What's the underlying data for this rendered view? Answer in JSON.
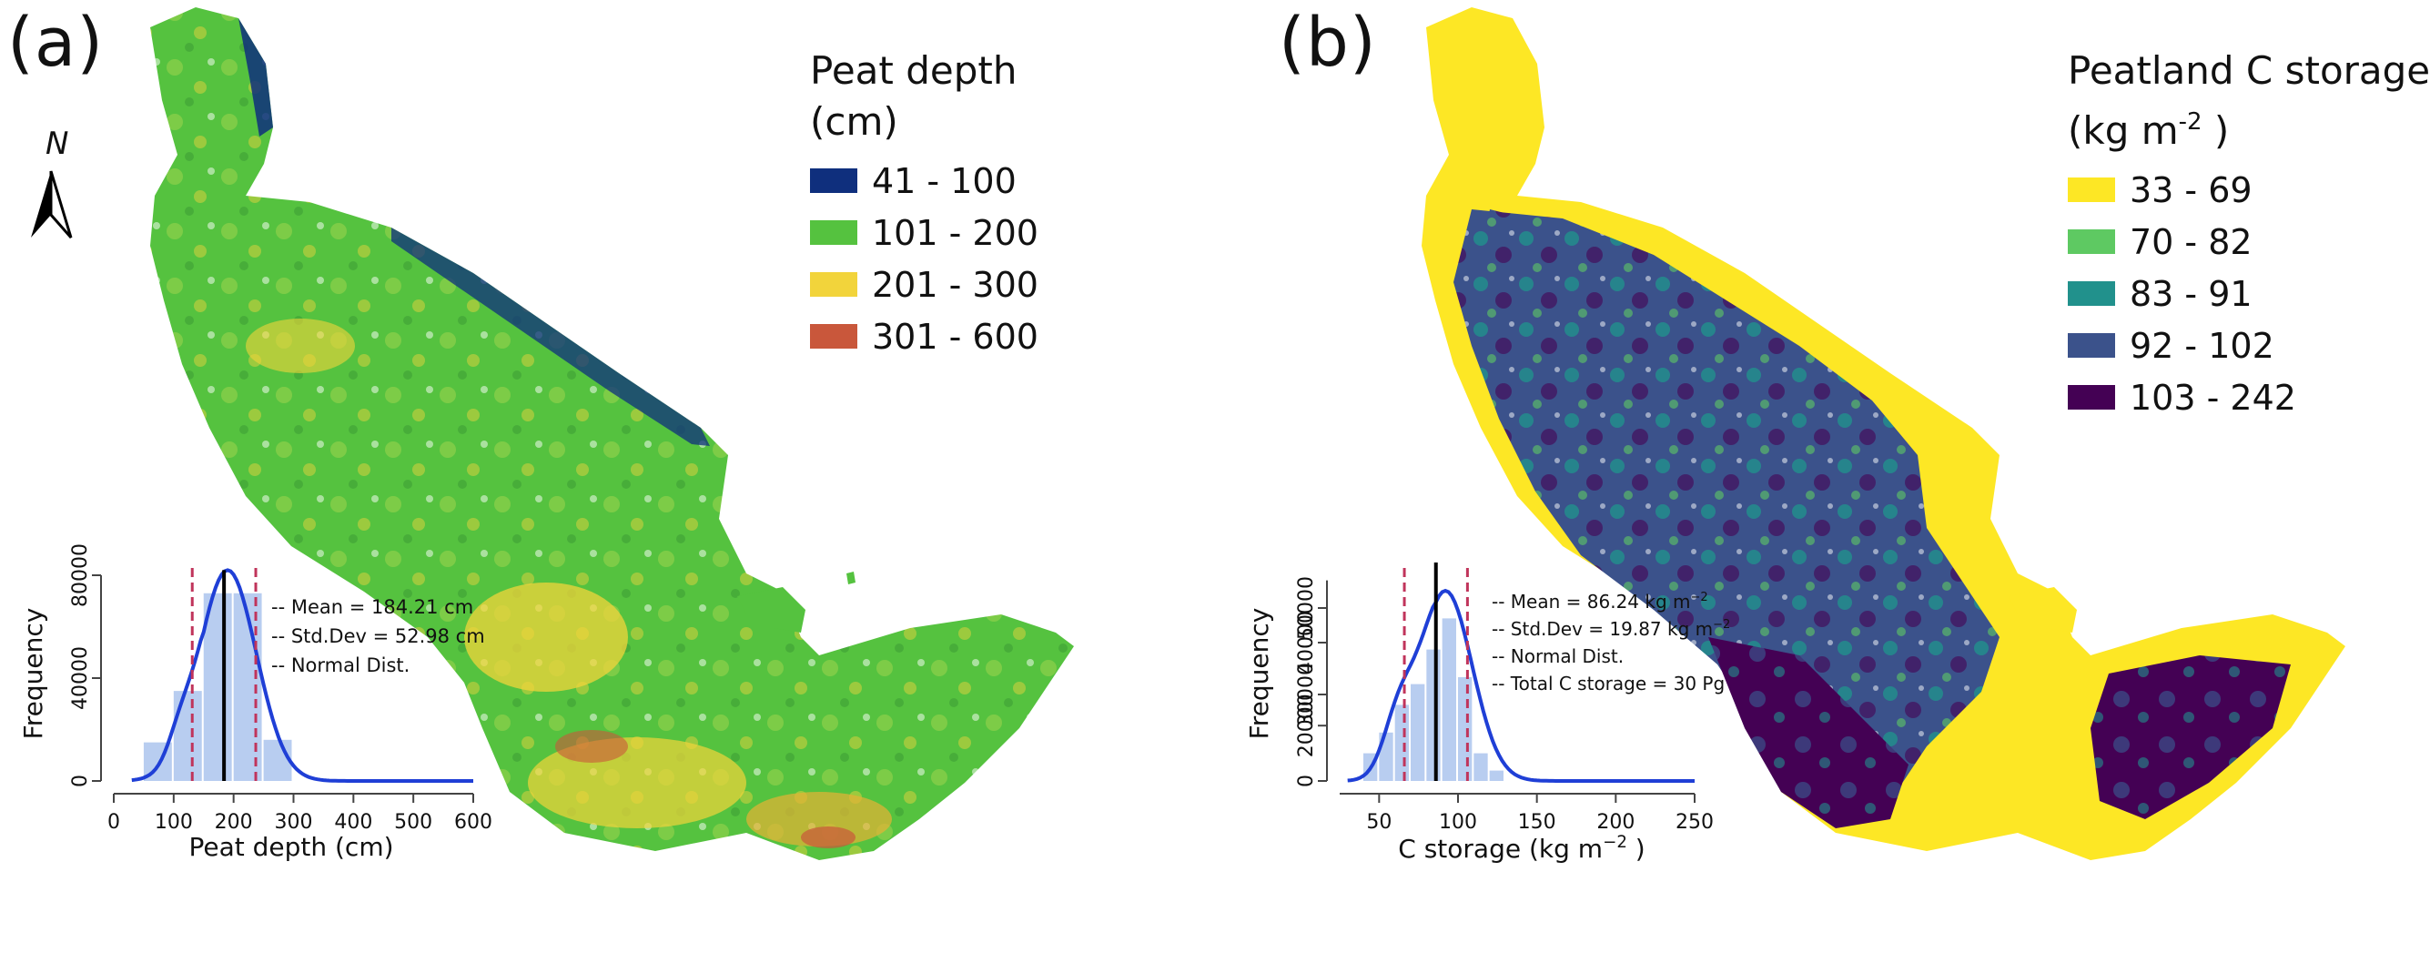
{
  "panels": [
    {
      "letter": "(a)",
      "legend": {
        "title_line1": "Peat depth",
        "title_line2": "(cm)",
        "items": [
          {
            "label": "41 - 100",
            "color": "#0f2f7d"
          },
          {
            "label": "101 - 200",
            "color": "#55c23f"
          },
          {
            "label": "201 - 300",
            "color": "#f2d43b"
          },
          {
            "label": "301 - 600",
            "color": "#c9573b"
          }
        ]
      },
      "north_label": "N",
      "histogram": {
        "ylabel": "Frequency",
        "xlabel": "Peat depth (cm)",
        "xticks": [
          "0",
          "100",
          "200",
          "300",
          "400",
          "500",
          "600"
        ],
        "yticks": [
          "0",
          "40000",
          "80000"
        ],
        "annotations": [
          "-- Mean = 184.21 cm",
          "-- Std.Dev = 52.98 cm",
          "-- Normal Dist."
        ]
      }
    },
    {
      "letter": "(b)",
      "legend": {
        "title_line1": "Peatland C storage",
        "title_line2_pre": "(kg m",
        "title_line2_sup": "-2",
        "title_line2_post": " )",
        "items": [
          {
            "label": "33 - 69",
            "color": "#fde725"
          },
          {
            "label": "70 - 82",
            "color": "#5ec962"
          },
          {
            "label": "83 - 91",
            "color": "#21918c"
          },
          {
            "label": "92 - 102",
            "color": "#3b528b"
          },
          {
            "label": "103 - 242",
            "color": "#440154"
          }
        ]
      },
      "histogram": {
        "ylabel": "Frequency",
        "xlabel_pre": "C storage (kg  m",
        "xlabel_sup": "−2",
        "xlabel_post": " )",
        "xticks": [
          "50",
          "100",
          "150",
          "200",
          "250"
        ],
        "yticks": [
          "0",
          "20000",
          "30000",
          "40000",
          "50000"
        ],
        "annotations": [
          {
            "pre": "-- Mean = 86.24 kg  m",
            "sup": "−2"
          },
          {
            "pre": "-- Std.Dev = 19.87 kg  m",
            "sup": "−2"
          },
          {
            "pre": "-- Normal Dist.",
            "sup": ""
          },
          {
            "pre": "-- Total C storage = 30 Pg",
            "sup": ""
          }
        ]
      }
    }
  ]
}
